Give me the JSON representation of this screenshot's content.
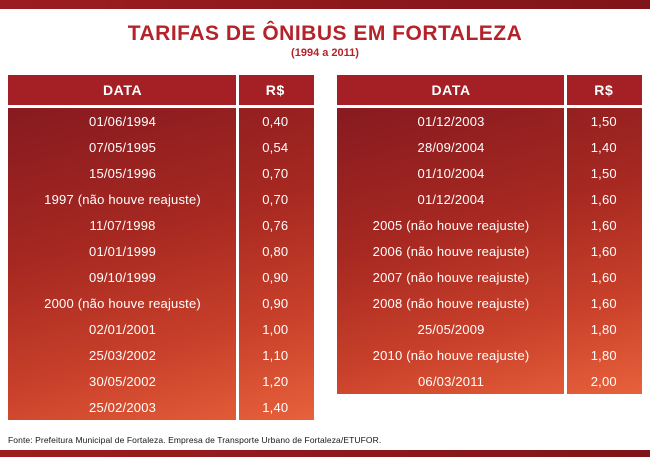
{
  "page": {
    "source": "Fonte: Prefeitura Municipal de Fortaleza. Empresa de Transporte Urbano de Fortaleza/ETUFOR."
  },
  "colors": {
    "title_red": "#b5232a",
    "header_red": "#a42025",
    "gradient_top": "#871a20",
    "gradient_bottom": "#e8613b",
    "bar_red": "#8e181b",
    "text_on_red": "#ffffff"
  },
  "chart_data": {
    "type": "table",
    "title": "TARIFAS DE ÔNIBUS EM FORTALEZA",
    "subtitle": "(1994 a 2011)",
    "columns": [
      "DATA",
      "R$"
    ],
    "tables": [
      {
        "rows": [
          [
            "01/06/1994",
            "0,40"
          ],
          [
            "07/05/1995",
            "0,54"
          ],
          [
            "15/05/1996",
            "0,70"
          ],
          [
            "1997 (não houve reajuste)",
            "0,70"
          ],
          [
            "11/07/1998",
            "0,76"
          ],
          [
            "01/01/1999",
            "0,80"
          ],
          [
            "09/10/1999",
            "0,90"
          ],
          [
            "2000 (não houve reajuste)",
            "0,90"
          ],
          [
            "02/01/2001",
            "1,00"
          ],
          [
            "25/03/2002",
            "1,10"
          ],
          [
            "30/05/2002",
            "1,20"
          ],
          [
            "25/02/2003",
            "1,40"
          ]
        ]
      },
      {
        "rows": [
          [
            "01/12/2003",
            "1,50"
          ],
          [
            "28/09/2004",
            "1,40"
          ],
          [
            "01/10/2004",
            "1,50"
          ],
          [
            "01/12/2004",
            "1,60"
          ],
          [
            "2005 (não houve reajuste)",
            "1,60"
          ],
          [
            "2006 (não houve reajuste)",
            "1,60"
          ],
          [
            "2007 (não houve reajuste)",
            "1,60"
          ],
          [
            "2008 (não houve reajuste)",
            "1,60"
          ],
          [
            "25/05/2009",
            "1,80"
          ],
          [
            "2010 (não houve reajuste)",
            "1,80"
          ],
          [
            "06/03/2011",
            "2,00"
          ]
        ]
      }
    ]
  }
}
